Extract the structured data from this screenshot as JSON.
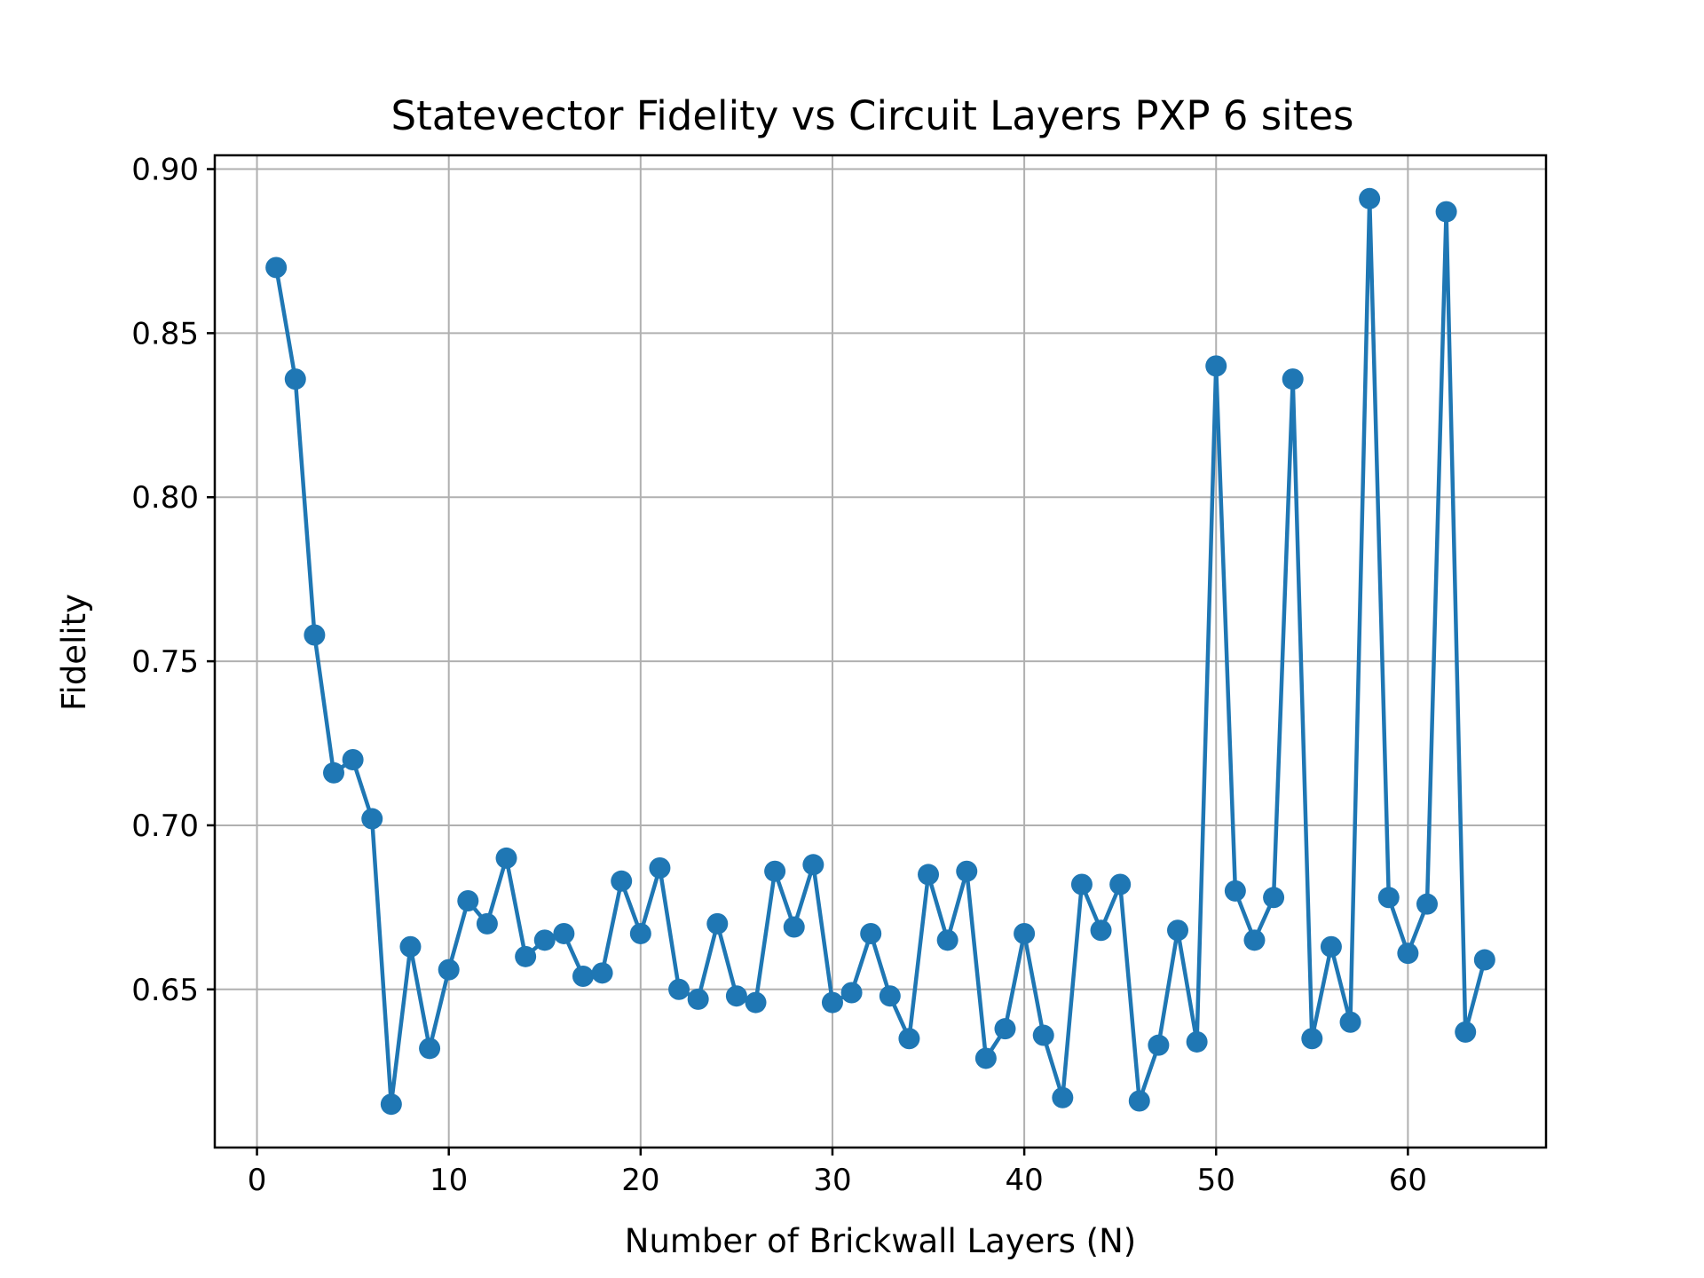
{
  "chart_data": {
    "type": "line",
    "title": "Statevector Fidelity vs Circuit Layers PXP 6 sites",
    "xlabel": "Number of Brickwall Layers (N)",
    "ylabel": "Fidelity",
    "xlim": [
      -2.2,
      67.2
    ],
    "ylim": [
      0.6018,
      0.9042
    ],
    "xticks": [
      0,
      10,
      20,
      30,
      40,
      50,
      60
    ],
    "xtick_labels": [
      "0",
      "10",
      "20",
      "30",
      "40",
      "50",
      "60"
    ],
    "yticks": [
      0.65,
      0.7,
      0.75,
      0.8,
      0.85,
      0.9
    ],
    "ytick_labels": [
      "0.65",
      "0.70",
      "0.75",
      "0.80",
      "0.85",
      "0.90"
    ],
    "grid": true,
    "marker": "circle",
    "color": "#1f77b4",
    "series": [
      {
        "x": [
          1,
          2,
          3,
          4,
          5,
          6,
          7,
          8,
          9,
          10,
          11,
          12,
          13,
          14,
          15,
          16,
          17,
          18,
          19,
          20,
          21,
          22,
          23,
          24,
          25,
          26,
          27,
          28,
          29,
          30,
          31,
          32,
          33,
          34,
          35,
          36,
          37,
          38,
          39,
          40,
          41,
          42,
          43,
          44,
          45,
          46,
          47,
          48,
          49,
          50,
          51,
          52,
          53,
          54,
          55,
          56,
          57,
          58,
          59,
          60,
          61,
          62,
          63,
          64
        ],
        "values": [
          0.87,
          0.836,
          0.758,
          0.716,
          0.72,
          0.702,
          0.615,
          0.663,
          0.632,
          0.656,
          0.677,
          0.67,
          0.69,
          0.66,
          0.665,
          0.667,
          0.654,
          0.655,
          0.683,
          0.667,
          0.687,
          0.65,
          0.647,
          0.67,
          0.648,
          0.646,
          0.686,
          0.669,
          0.688,
          0.646,
          0.649,
          0.667,
          0.648,
          0.635,
          0.685,
          0.665,
          0.686,
          0.629,
          0.638,
          0.667,
          0.636,
          0.617,
          0.682,
          0.668,
          0.682,
          0.616,
          0.633,
          0.668,
          0.634,
          0.84,
          0.68,
          0.665,
          0.678,
          0.836,
          0.635,
          0.663,
          0.64,
          0.891,
          0.678,
          0.661,
          0.676,
          0.887,
          0.637,
          0.659
        ]
      }
    ]
  }
}
